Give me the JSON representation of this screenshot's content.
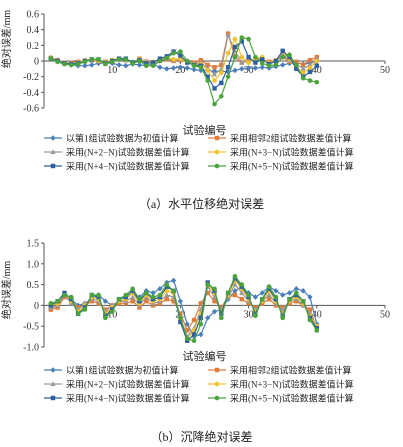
{
  "chart_data": [
    {
      "type": "line",
      "title": "",
      "caption": "（a）水平位移绝对误差",
      "xlabel": "试验编号",
      "ylabel": "绝对误差/mm",
      "xlim": [
        0,
        50
      ],
      "ylim": [
        -0.6,
        0.6
      ],
      "xticks": [
        "10",
        "20",
        "30",
        "40",
        "50"
      ],
      "yticks": [
        "0.6",
        "0.4",
        "0.2",
        "0",
        "-0.2",
        "-0.4",
        "-0.6"
      ],
      "grid": false,
      "legend_position": "bottom",
      "x": [
        1,
        2,
        3,
        4,
        5,
        6,
        7,
        8,
        9,
        10,
        11,
        12,
        13,
        14,
        15,
        16,
        17,
        18,
        19,
        20,
        21,
        22,
        23,
        24,
        25,
        26,
        27,
        28,
        29,
        30,
        31,
        32,
        33,
        34,
        35,
        36,
        37,
        38,
        39,
        40
      ],
      "series": [
        {
          "name": "以第1组试验数据为初值计算",
          "color": "#4a7ebb",
          "marker": "diamond",
          "values": [
            0.04,
            0.01,
            -0.03,
            -0.05,
            -0.06,
            -0.06,
            -0.05,
            -0.03,
            -0.02,
            -0.03,
            -0.05,
            -0.06,
            -0.04,
            -0.05,
            -0.06,
            -0.04,
            -0.08,
            -0.1,
            -0.09,
            -0.08,
            -0.09,
            -0.11,
            -0.12,
            -0.12,
            -0.13,
            -0.13,
            -0.14,
            -0.12,
            -0.1,
            -0.09,
            -0.09,
            -0.08,
            -0.09,
            -0.07,
            -0.05,
            -0.03,
            -0.02,
            -0.04,
            -0.03,
            0.0
          ]
        },
        {
          "name": "采用相邻2组试验数据差值计算",
          "color": "#e07b39",
          "marker": "square",
          "values": [
            0.04,
            0.01,
            -0.03,
            -0.02,
            -0.01,
            0.0,
            0.01,
            0.0,
            -0.01,
            0.01,
            0.02,
            0.01,
            -0.02,
            0.03,
            -0.01,
            -0.02,
            0.01,
            0.02,
            0.0,
            0.01,
            -0.01,
            -0.02,
            0.01,
            -0.05,
            -0.08,
            -0.05,
            0.35,
            0.05,
            -0.02,
            0.01,
            0.0,
            0.02,
            -0.01,
            0.01,
            0.05,
            -0.01,
            -0.01,
            -0.05,
            0.01,
            0.05
          ]
        },
        {
          "name": "采用(N+2−N)试验数据差值计算",
          "color": "#999999",
          "marker": "triangle",
          "values": [
            0.04,
            0.01,
            -0.02,
            -0.03,
            -0.01,
            0.0,
            0.01,
            0.01,
            -0.01,
            0.0,
            0.02,
            0.01,
            -0.01,
            0.02,
            0.0,
            -0.02,
            0.0,
            0.03,
            0.01,
            0.02,
            0.0,
            -0.03,
            -0.02,
            -0.09,
            -0.17,
            -0.1,
            0.33,
            0.13,
            -0.02,
            0.0,
            0.02,
            0.03,
            -0.02,
            0.0,
            0.08,
            0.0,
            -0.04,
            -0.1,
            -0.05,
            0.03
          ]
        },
        {
          "name": "采用(N+3−N)试验数据差值计算",
          "color": "#f2c12e",
          "marker": "circle",
          "values": [
            0.04,
            0.0,
            -0.02,
            -0.04,
            -0.02,
            0.01,
            0.02,
            0.0,
            -0.02,
            0.01,
            0.03,
            0.02,
            -0.03,
            0.02,
            -0.02,
            -0.01,
            0.02,
            0.05,
            0.02,
            0.03,
            -0.01,
            -0.04,
            -0.04,
            -0.12,
            -0.25,
            -0.15,
            0.1,
            0.28,
            0.05,
            -0.02,
            0.03,
            0.05,
            -0.03,
            0.01,
            0.12,
            0.02,
            -0.08,
            -0.15,
            -0.09,
            0.0
          ]
        },
        {
          "name": "采用(N+4−N)试验数据差值计算",
          "color": "#2e5fa0",
          "marker": "square",
          "values": [
            0.03,
            0.0,
            -0.03,
            -0.04,
            -0.03,
            0.0,
            0.02,
            0.02,
            -0.03,
            0.0,
            0.03,
            0.03,
            -0.02,
            0.01,
            -0.03,
            -0.02,
            0.03,
            0.06,
            0.12,
            0.07,
            -0.02,
            -0.05,
            -0.06,
            -0.2,
            -0.35,
            -0.28,
            -0.08,
            0.18,
            0.25,
            0.05,
            -0.02,
            0.02,
            -0.04,
            0.0,
            0.13,
            0.05,
            -0.1,
            -0.2,
            -0.14,
            -0.06
          ]
        },
        {
          "name": "采用(N+5−N)试验数据差值计算",
          "color": "#4aa33b",
          "marker": "circle",
          "values": [
            0.03,
            -0.01,
            -0.04,
            -0.05,
            -0.04,
            -0.01,
            0.02,
            0.02,
            -0.04,
            -0.01,
            0.02,
            0.02,
            -0.03,
            0.0,
            -0.06,
            -0.06,
            0.0,
            0.04,
            0.1,
            0.12,
            0.0,
            -0.06,
            -0.08,
            -0.25,
            -0.55,
            -0.45,
            -0.2,
            0.05,
            0.3,
            0.28,
            0.05,
            -0.03,
            -0.06,
            -0.05,
            0.05,
            0.08,
            -0.05,
            -0.22,
            -0.25,
            -0.27
          ]
        }
      ]
    },
    {
      "type": "line",
      "title": "",
      "caption": "（b）沉降绝对误差",
      "xlabel": "试验编号",
      "ylabel": "绝对误差/mm",
      "xlim": [
        0,
        50
      ],
      "ylim": [
        -1.0,
        1.5
      ],
      "xticks": [
        "10",
        "20",
        "30",
        "40",
        "50"
      ],
      "yticks": [
        "1.5",
        "1.0",
        "0.5",
        "0",
        "-0.5",
        "-1.0"
      ],
      "grid": false,
      "legend_position": "bottom",
      "x": [
        1,
        2,
        3,
        4,
        5,
        6,
        7,
        8,
        9,
        10,
        11,
        12,
        13,
        14,
        15,
        16,
        17,
        18,
        19,
        20,
        21,
        22,
        23,
        24,
        25,
        26,
        27,
        28,
        29,
        30,
        31,
        32,
        33,
        34,
        35,
        36,
        37,
        38,
        39,
        40
      ],
      "series": [
        {
          "name": "以第1组试验数据为初值计算",
          "color": "#4a7ebb",
          "marker": "diamond",
          "values": [
            -0.1,
            0.05,
            0.25,
            0.15,
            0.0,
            0.05,
            0.15,
            0.25,
            0.1,
            0.0,
            0.05,
            0.15,
            0.3,
            0.2,
            0.35,
            0.3,
            0.4,
            0.55,
            0.6,
            0.1,
            -0.45,
            -0.75,
            -0.7,
            -0.3,
            -0.15,
            -0.1,
            0.15,
            0.35,
            0.45,
            0.3,
            0.2,
            0.3,
            0.45,
            0.35,
            0.25,
            0.3,
            0.4,
            0.35,
            0.2,
            -0.45
          ]
        },
        {
          "name": "采用相邻2组试验数据差值计算",
          "color": "#e07b39",
          "marker": "square",
          "values": [
            -0.1,
            -0.05,
            0.2,
            0.1,
            -0.05,
            0.0,
            0.1,
            0.05,
            -0.1,
            0.0,
            0.05,
            0.05,
            0.1,
            -0.05,
            0.1,
            0.0,
            0.05,
            0.15,
            0.1,
            -0.2,
            -0.6,
            -0.35,
            0.05,
            0.3,
            0.1,
            -0.05,
            0.2,
            0.25,
            0.15,
            0.05,
            -0.05,
            0.05,
            0.15,
            0.0,
            -0.05,
            0.05,
            0.1,
            0.0,
            -0.1,
            -0.55
          ]
        },
        {
          "name": "采用(N+2−N)试验数据差值计算",
          "color": "#999999",
          "marker": "triangle",
          "values": [
            -0.05,
            0.0,
            0.25,
            0.05,
            -0.1,
            0.05,
            0.15,
            0.1,
            -0.15,
            0.0,
            0.1,
            0.1,
            0.2,
            0.0,
            0.2,
            0.05,
            0.1,
            0.25,
            0.2,
            -0.3,
            -0.75,
            -0.55,
            -0.1,
            0.45,
            0.2,
            -0.1,
            0.2,
            0.5,
            0.3,
            0.1,
            -0.1,
            0.1,
            0.25,
            0.05,
            -0.1,
            0.1,
            0.15,
            0.0,
            -0.2,
            -0.6
          ]
        },
        {
          "name": "采用(N+3−N)试验数据差值计算",
          "color": "#f2c12e",
          "marker": "circle",
          "values": [
            0.0,
            0.05,
            0.3,
            0.1,
            -0.15,
            0.0,
            0.2,
            0.15,
            -0.2,
            -0.05,
            0.1,
            0.15,
            0.3,
            0.05,
            0.25,
            0.1,
            0.15,
            0.35,
            0.3,
            -0.35,
            -0.8,
            -0.6,
            -0.2,
            0.5,
            0.3,
            -0.15,
            0.25,
            0.6,
            0.4,
            0.15,
            -0.15,
            0.1,
            0.35,
            0.1,
            -0.2,
            0.1,
            0.2,
            0.05,
            -0.25,
            -0.5
          ]
        },
        {
          "name": "采用(N+4−N)试验数据差值计算",
          "color": "#2e5fa0",
          "marker": "square",
          "values": [
            0.0,
            0.1,
            0.3,
            0.15,
            -0.2,
            -0.05,
            0.25,
            0.2,
            -0.25,
            -0.1,
            0.15,
            0.2,
            0.35,
            0.1,
            0.3,
            0.15,
            0.2,
            0.45,
            0.35,
            -0.4,
            -0.85,
            -0.7,
            -0.3,
            0.55,
            0.35,
            -0.2,
            0.3,
            0.65,
            0.45,
            0.2,
            -0.2,
            0.15,
            0.4,
            0.15,
            -0.25,
            0.15,
            0.25,
            0.1,
            -0.3,
            -0.55
          ]
        },
        {
          "name": "采用(N+5−N)试验数据差值计算",
          "color": "#4aa33b",
          "marker": "circle",
          "values": [
            0.05,
            0.1,
            0.25,
            0.2,
            -0.2,
            -0.1,
            0.25,
            0.25,
            -0.3,
            -0.15,
            0.15,
            0.25,
            0.4,
            0.15,
            0.3,
            0.2,
            0.25,
            0.5,
            0.35,
            -0.3,
            -0.8,
            -0.85,
            -0.45,
            0.5,
            0.4,
            -0.3,
            0.3,
            0.7,
            0.5,
            0.25,
            -0.25,
            0.15,
            0.45,
            0.2,
            -0.3,
            0.15,
            0.3,
            0.1,
            -0.35,
            -0.6
          ]
        }
      ]
    }
  ]
}
